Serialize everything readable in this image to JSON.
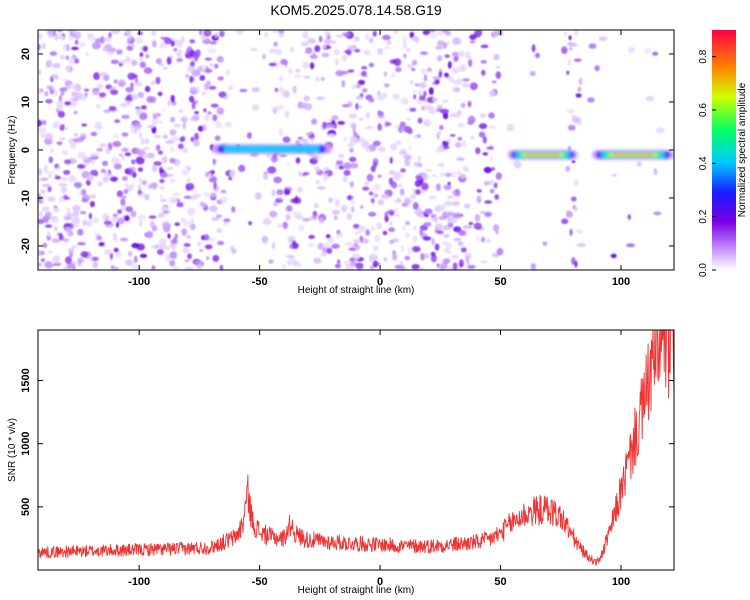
{
  "chart_data": [
    {
      "type": "heatmap",
      "title": "KOM5.2025.078.14.58.G19",
      "xlabel": "Height of straight line (km)",
      "ylabel": "Frequency (Hz)",
      "xlim": [
        -142,
        122
      ],
      "ylim": [
        -25,
        25
      ],
      "x_ticks": [
        -100,
        -50,
        0,
        50,
        100
      ],
      "y_ticks": [
        -20,
        -10,
        0,
        10,
        20
      ],
      "grid": false,
      "colormap": "rainbow (white -> violet -> blue -> cyan -> green -> yellow -> red)",
      "colorbar": {
        "label": "Normalized spectral amplitude",
        "range": [
          0,
          0.9
        ],
        "ticks": [
          0.0,
          0.2,
          0.4,
          0.6,
          0.8
        ]
      },
      "features": [
        {
          "x_range": [
            -70,
            -20
          ],
          "frequency": 0,
          "peak_amplitude": 0.5
        },
        {
          "x_range": [
            53,
            82
          ],
          "frequency": -1,
          "peak_amplitude": 0.9
        },
        {
          "x_range": [
            88,
            122
          ],
          "frequency": -1,
          "peak_amplitude": 0.9
        }
      ],
      "background": "scattered noise blobs of low amplitude (violet)"
    },
    {
      "type": "line",
      "title": "",
      "xlabel": "Height of straight line (km)",
      "ylabel": "SNR (10 * v/v)",
      "xlim": [
        -142,
        122
      ],
      "ylim": [
        0,
        1900
      ],
      "x_ticks": [
        -100,
        -50,
        0,
        50,
        100
      ],
      "y_ticks": [
        500,
        1000,
        1500
      ],
      "grid": false,
      "series": [
        {
          "color": "#ee3333",
          "x": [
            -142,
            -120,
            -100,
            -80,
            -70,
            -60,
            -57,
            -55,
            -53,
            -50,
            -45,
            -40,
            -37,
            -35,
            -30,
            -20,
            -10,
            0,
            10,
            20,
            30,
            40,
            45,
            50,
            55,
            60,
            65,
            70,
            75,
            78,
            82,
            85,
            88,
            90,
            92,
            95,
            100,
            105,
            108,
            110,
            112,
            115,
            118,
            120,
            122
          ],
          "values": [
            140,
            150,
            160,
            170,
            180,
            260,
            360,
            620,
            380,
            300,
            260,
            250,
            370,
            280,
            240,
            220,
            210,
            200,
            190,
            190,
            200,
            220,
            240,
            290,
            380,
            440,
            470,
            480,
            420,
            330,
            200,
            130,
            80,
            60,
            120,
            280,
            620,
            980,
            1200,
            1350,
            1550,
            1720,
            1780,
            1700,
            1720
          ]
        }
      ]
    }
  ]
}
